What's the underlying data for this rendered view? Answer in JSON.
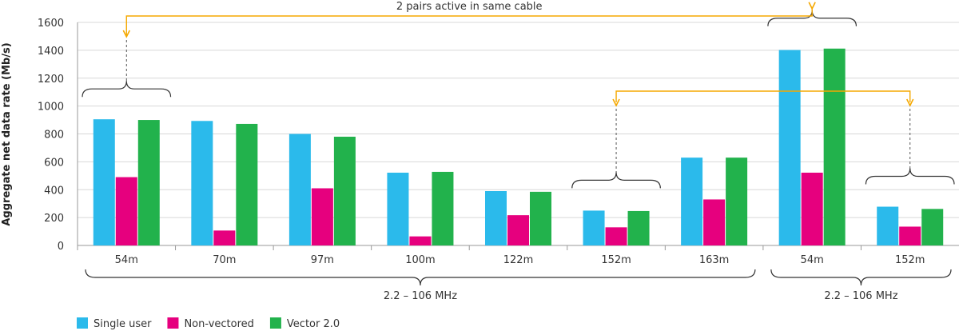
{
  "chart_data": {
    "type": "bar",
    "title": "",
    "xlabel": "",
    "ylabel": "Aggregate net data rate (Mb/s)",
    "ylim": [
      0,
      1600
    ],
    "yticks": [
      0,
      200,
      400,
      600,
      800,
      1000,
      1200,
      1400,
      1600
    ],
    "grid": true,
    "legend_position": "bottom-left",
    "categories": [
      "54m",
      "70m",
      "97m",
      "100m",
      "122m",
      "152m",
      "163m",
      "54m",
      "152m"
    ],
    "series": [
      {
        "name": "Single user",
        "color": "#2bbaeb",
        "values": [
          905,
          893,
          800,
          522,
          390,
          250,
          630,
          1402,
          278
        ]
      },
      {
        "name": "Non-vectored",
        "color": "#e6007e",
        "values": [
          490,
          107,
          410,
          65,
          217,
          130,
          330,
          522,
          135
        ]
      },
      {
        "name": "Vector 2.0",
        "color": "#22b24c",
        "values": [
          900,
          872,
          780,
          528,
          385,
          247,
          630,
          1412,
          262
        ]
      }
    ],
    "band_labels": [
      {
        "text": "2.2 – 106 MHz",
        "from_category": 0,
        "to_category": 6
      },
      {
        "text": "2.2 – 106 MHz",
        "from_category": 7,
        "to_category": 8
      }
    ],
    "annotation": "2 pairs active in same cable",
    "annotation_color": "#f5a800"
  }
}
